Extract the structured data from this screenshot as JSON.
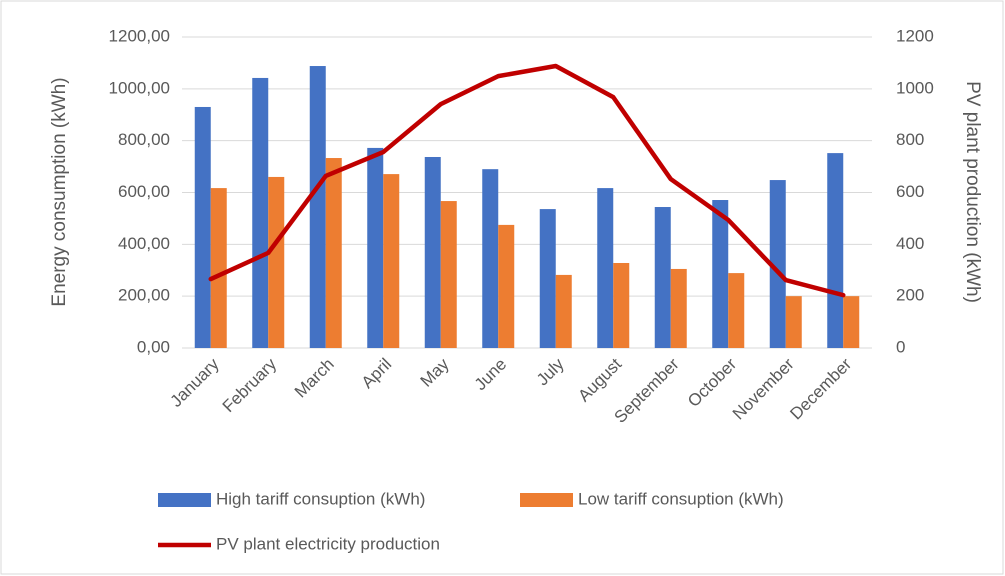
{
  "chart_data": {
    "type": "bar",
    "categories": [
      "January",
      "February",
      "March",
      "April",
      "May",
      "June",
      "July",
      "August",
      "September",
      "October",
      "November",
      "December"
    ],
    "y_label": "Energy consumption (kWh)",
    "y2_label": "PV plant production (kWh)",
    "ylim": [
      0,
      1200
    ],
    "yticks": [
      {
        "value": 0,
        "label": "0,00"
      },
      {
        "value": 200,
        "label": "200,00"
      },
      {
        "value": 400,
        "label": "400,00"
      },
      {
        "value": 600,
        "label": "600,00"
      },
      {
        "value": 800,
        "label": "800,00"
      },
      {
        "value": 1000,
        "label": "1000,00"
      },
      {
        "value": 1200,
        "label": "1200,00"
      }
    ],
    "y2lim": [
      0,
      1200
    ],
    "y2ticks": [
      0,
      200,
      400,
      600,
      800,
      1000,
      1200
    ],
    "grid": true,
    "legend": "bottom",
    "series": [
      {
        "name": "High tariff consuption (kWh)",
        "color": "#4472c4",
        "type": "bar",
        "values": [
          930,
          1042,
          1088,
          772,
          737,
          690,
          536,
          617,
          544,
          571,
          648,
          752
        ]
      },
      {
        "name": "Low tariff consuption (kWh)",
        "color": "#ed7d31",
        "type": "bar",
        "values": [
          617,
          660,
          733,
          671,
          567,
          475,
          282,
          328,
          305,
          289,
          200,
          200
        ]
      },
      {
        "name": "PV plant electricity production",
        "color": "#c00000",
        "type": "line",
        "axis": "y2",
        "values": [
          266,
          367,
          664,
          756,
          941,
          1049,
          1088,
          968,
          652,
          494,
          262,
          204
        ]
      }
    ]
  }
}
